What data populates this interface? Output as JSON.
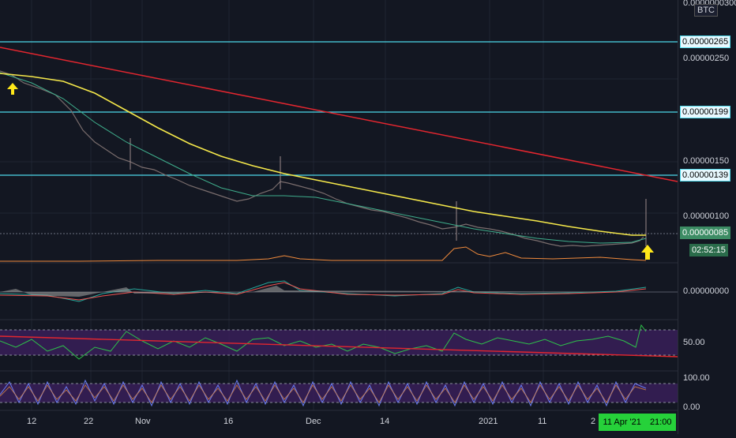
{
  "symbol_badge": "BTC",
  "price_axis": {
    "top_partial": "0.0000000300",
    "labels": [
      "0.00000250",
      "0.00000150",
      "0.00000100"
    ],
    "horizontal_line_tags": [
      "0.00000265",
      "0.00000199",
      "0.00000139"
    ],
    "current_price": "0.00000085",
    "countdown": "02:52:15"
  },
  "oscillator_axis": {
    "zero_label": "0.00000000"
  },
  "rsi_axis": {
    "mid_label": "50.00"
  },
  "stoch_axis": {
    "top_label": "100.00",
    "bottom_label": "0.00"
  },
  "time_axis": {
    "labels": [
      "12",
      "22",
      "Nov",
      "16",
      "Dec",
      "14",
      "2021",
      "11",
      "2"
    ],
    "cursor_date": "11 Apr '21",
    "cursor_time": "21:00"
  },
  "colors": {
    "background": "#131722",
    "cyan_line": "#4dd9ea",
    "trend_line": "#e3262f",
    "ma_yellow": "#f5e84a",
    "arrow": "#ffe81a",
    "rsi_band": "#3b1f5c",
    "cursor_badge": "#26d13a"
  },
  "icons": {
    "arrow_up": "arrow-up-icon"
  }
}
